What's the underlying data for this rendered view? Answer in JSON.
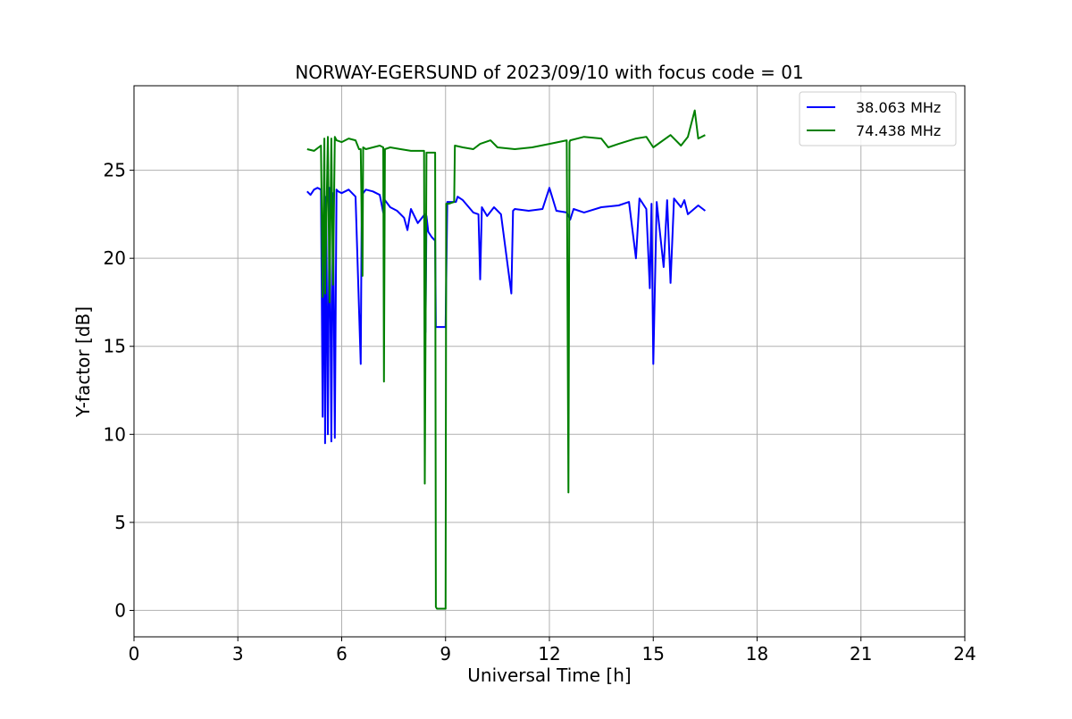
{
  "chart_data": {
    "type": "line",
    "title": "NORWAY-EGERSUND of 2023/09/10 with focus code = 01",
    "xlabel": "Universal Time [h]",
    "ylabel": "Y-factor [dB]",
    "xlim": [
      0,
      24
    ],
    "ylim": [
      -1.5,
      29.8
    ],
    "xticks": [
      0,
      3,
      6,
      9,
      12,
      15,
      18,
      21,
      24
    ],
    "yticks": [
      0,
      5,
      10,
      15,
      20,
      25
    ],
    "grid": true,
    "legend_position": "top-right",
    "series": [
      {
        "name": "38.063 MHz",
        "color": "#0000ff",
        "x": [
          5.0,
          5.1,
          5.2,
          5.3,
          5.4,
          5.45,
          5.5,
          5.52,
          5.55,
          5.6,
          5.65,
          5.7,
          5.75,
          5.8,
          5.85,
          5.9,
          6.0,
          6.2,
          6.4,
          6.55,
          6.58,
          6.62,
          6.7,
          6.9,
          7.1,
          7.2,
          7.25,
          7.4,
          7.6,
          7.8,
          7.9,
          8.0,
          8.2,
          8.4,
          8.42,
          8.45,
          8.5,
          8.6,
          8.7,
          8.72,
          9.0,
          9.05,
          9.3,
          9.35,
          9.5,
          9.8,
          9.95,
          10.0,
          10.05,
          10.2,
          10.4,
          10.6,
          10.9,
          10.95,
          11.0,
          11.4,
          11.8,
          12.0,
          12.2,
          12.5,
          12.6,
          12.7,
          13.0,
          13.5,
          14.0,
          14.3,
          14.5,
          14.6,
          14.8,
          14.9,
          14.95,
          15.0,
          15.1,
          15.3,
          15.4,
          15.5,
          15.6,
          15.8,
          15.9,
          16.0,
          16.3,
          16.5
        ],
        "values": [
          23.8,
          23.6,
          23.9,
          24.0,
          23.9,
          11.0,
          23.8,
          9.5,
          23.5,
          10.0,
          24.0,
          9.6,
          23.7,
          9.8,
          23.9,
          23.8,
          23.7,
          23.9,
          23.5,
          14.0,
          23.6,
          23.7,
          23.9,
          23.8,
          23.6,
          22.6,
          23.3,
          22.9,
          22.7,
          22.3,
          21.6,
          22.8,
          22.0,
          22.5,
          15.8,
          22.4,
          21.5,
          21.2,
          21.0,
          16.1,
          16.1,
          23.2,
          23.2,
          23.5,
          23.3,
          22.6,
          22.5,
          18.8,
          22.9,
          22.4,
          22.9,
          22.5,
          18.0,
          22.7,
          22.8,
          22.7,
          22.8,
          24.0,
          22.7,
          22.6,
          22.2,
          22.8,
          22.6,
          22.9,
          23.0,
          23.2,
          20.0,
          23.4,
          22.8,
          18.3,
          23.1,
          14.0,
          23.2,
          19.5,
          23.3,
          18.6,
          23.4,
          22.9,
          23.3,
          22.5,
          23.0,
          22.7
        ]
      },
      {
        "name": "74.438 MHz",
        "color": "#008000",
        "x": [
          5.0,
          5.2,
          5.4,
          5.45,
          5.5,
          5.52,
          5.6,
          5.65,
          5.7,
          5.75,
          5.8,
          5.85,
          6.0,
          6.2,
          6.4,
          6.5,
          6.55,
          6.6,
          6.62,
          6.7,
          6.9,
          7.1,
          7.2,
          7.22,
          7.25,
          7.4,
          7.7,
          8.0,
          8.3,
          8.38,
          8.4,
          8.45,
          8.5,
          8.6,
          8.7,
          8.72,
          8.75,
          9.0,
          9.02,
          9.1,
          9.25,
          9.27,
          9.5,
          9.8,
          10.0,
          10.3,
          10.5,
          11.0,
          11.5,
          12.0,
          12.5,
          12.55,
          12.58,
          12.6,
          13.0,
          13.5,
          13.7,
          14.0,
          14.5,
          14.8,
          15.0,
          15.5,
          15.8,
          16.0,
          16.2,
          16.3,
          16.5
        ],
        "values": [
          26.2,
          26.1,
          26.4,
          17.8,
          26.8,
          18.0,
          26.9,
          17.5,
          26.8,
          18.5,
          26.9,
          26.7,
          26.6,
          26.8,
          26.7,
          26.2,
          26.2,
          19.0,
          26.3,
          26.2,
          26.3,
          26.4,
          26.3,
          13.0,
          26.2,
          26.3,
          26.2,
          26.1,
          26.1,
          26.1,
          7.2,
          26.0,
          26.0,
          26.0,
          26.0,
          0.2,
          0.1,
          0.1,
          23.1,
          23.1,
          23.2,
          26.4,
          26.3,
          26.2,
          26.5,
          26.7,
          26.3,
          26.2,
          26.3,
          26.5,
          26.7,
          6.7,
          26.6,
          26.7,
          26.9,
          26.8,
          26.3,
          26.5,
          26.8,
          26.9,
          26.3,
          27.0,
          26.4,
          26.9,
          28.4,
          26.8,
          27.0
        ]
      }
    ]
  }
}
